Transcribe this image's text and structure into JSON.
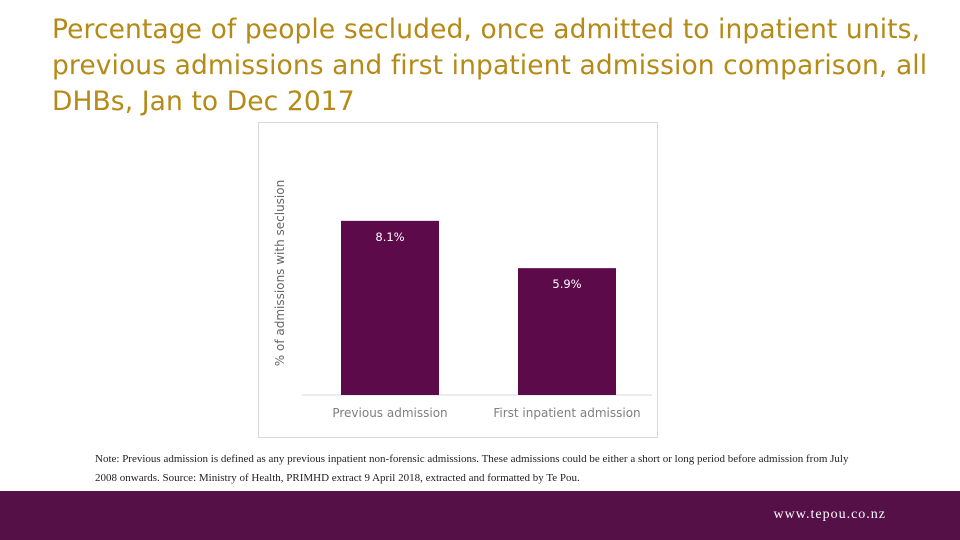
{
  "slide": {
    "title": "Percentage of people secluded, once admitted to inpatient units, previous admissions and first inpatient admission comparison, all DHBs, Jan to Dec 2017",
    "note": "Note: Previous admission is defined as any previous inpatient non-forensic admissions. These admissions could be either a short or long period before admission from July 2008 onwards. Source: Ministry of Health, PRIMHD extract 9 April 2018, extracted and formatted by Te Pou.",
    "footer_url": "www.tepou.co.nz"
  },
  "colors": {
    "title": "#b58a16",
    "bar": "#5c0a4a",
    "footer": "#561048"
  },
  "chart_data": {
    "type": "bar",
    "title": "",
    "xlabel": "",
    "ylabel": "% of admissions with seclusion",
    "categories": [
      "Previous admission",
      "First inpatient admission"
    ],
    "values": [
      8.1,
      5.9
    ],
    "data_labels": [
      "8.1%",
      "5.9%"
    ],
    "ylim": [
      0,
      12
    ],
    "grid": false,
    "legend": "none"
  }
}
